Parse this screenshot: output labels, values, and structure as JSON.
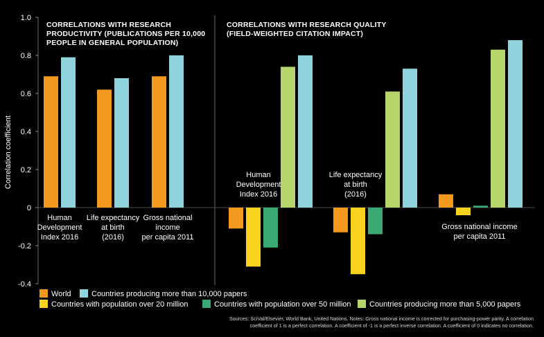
{
  "colors": {
    "background": "#000000",
    "text": "#ffffff",
    "world": "#f39a1e",
    "countries_10000": "#8fd3dc",
    "pop_20m": "#f7d21f",
    "pop_50m": "#3aaa74",
    "countries_5000": "#b5d56a"
  },
  "chart_data": {
    "type": "bar",
    "ylabel": "Correlation coefficient",
    "ylim": [
      -0.4,
      1.0
    ],
    "yticks": [
      "1.0",
      "0.8",
      "0.6",
      "0.4",
      "0.2",
      "0",
      "-0.2",
      "-0.4"
    ],
    "yvalues": [
      1.0,
      0.8,
      0.6,
      0.4,
      0.2,
      0,
      -0.2,
      -0.4
    ],
    "panels": [
      {
        "title_lines": [
          "CORRELATIONS WITH RESEARCH",
          "PRODUCTIVITY (PUBLICATIONS PER 10,000",
          "PEOPLE IN GENERAL POPULATION)"
        ],
        "groups": [
          {
            "label_lines": [
              "Human",
              "Development",
              "Index 2016"
            ],
            "bars": [
              {
                "series": "World",
                "value": 0.69
              },
              {
                "series": "Countries producing more than 10,000 papers",
                "value": 0.79
              }
            ]
          },
          {
            "label_lines": [
              "Life expectancy",
              "at birth",
              "(2016)"
            ],
            "bars": [
              {
                "series": "World",
                "value": 0.62
              },
              {
                "series": "Countries producing more than 10,000 papers",
                "value": 0.68
              }
            ]
          },
          {
            "label_lines": [
              "Gross national",
              "income",
              "per capita 2011"
            ],
            "bars": [
              {
                "series": "World",
                "value": 0.69
              },
              {
                "series": "Countries producing more than 10,000 papers",
                "value": 0.8
              }
            ]
          }
        ]
      },
      {
        "title_lines": [
          "CORRELATIONS WITH RESEARCH QUALITY",
          "(FIELD-WEIGHTED CITATION IMPACT)"
        ],
        "groups": [
          {
            "label_lines": [
              "Human",
              "Development",
              "Index 2016"
            ],
            "bars": [
              {
                "series": "World",
                "value": -0.11
              },
              {
                "series": "Countries with population over 20 million",
                "value": -0.31
              },
              {
                "series": "Countries with population over 50 million",
                "value": -0.21
              },
              {
                "series": "Countries producing more than 5,000 papers",
                "value": 0.74
              },
              {
                "series": "Countries producing more than 10,000 papers",
                "value": 0.8
              }
            ]
          },
          {
            "label_lines": [
              "Life expectancy",
              "at birth",
              "(2016)"
            ],
            "bars": [
              {
                "series": "World",
                "value": -0.13
              },
              {
                "series": "Countries with population over 20 million",
                "value": -0.35
              },
              {
                "series": "Countries with population over 50 million",
                "value": -0.14
              },
              {
                "series": "Countries producing more than 5,000 papers",
                "value": 0.61
              },
              {
                "series": "Countries producing more than 10,000 papers",
                "value": 0.73
              }
            ]
          },
          {
            "label_lines": [
              "Gross national income",
              "per capita 2011"
            ],
            "bars": [
              {
                "series": "World",
                "value": 0.07
              },
              {
                "series": "Countries with population over 20 million",
                "value": -0.04
              },
              {
                "series": "Countries with population over 50 million",
                "value": 0.01
              },
              {
                "series": "Countries producing more than 5,000 papers",
                "value": 0.83
              },
              {
                "series": "Countries producing more than 10,000 papers",
                "value": 0.88
              }
            ]
          }
        ]
      }
    ],
    "legend": [
      {
        "series": "World",
        "label": "World",
        "color_key": "world"
      },
      {
        "series": "Countries producing more than 10,000 papers",
        "label": "Countries producing more than 10,000 papers",
        "color_key": "countries_10000"
      },
      {
        "series": "Countries with population over 20 million",
        "label": "Countries with population over 20 million",
        "color_key": "pop_20m"
      },
      {
        "series": "Countries with population over 50 million",
        "label": "Countries with population over 50 million",
        "color_key": "pop_50m"
      },
      {
        "series": "Countries producing more than 5,000 papers",
        "label": "Countries producing more than 5,000 papers",
        "color_key": "countries_5000"
      }
    ],
    "source_lines": [
      "Sources: SciVal/Elsevier, World Bank, United Nations. Notes: Gross national income is corrected for purchasing-power parity. A correlation",
      "coefficient of 1 is a perfect correlation. A coefficient of -1 is a perfect inverse correlation. A coefficient of 0 indicates no correlation."
    ]
  }
}
